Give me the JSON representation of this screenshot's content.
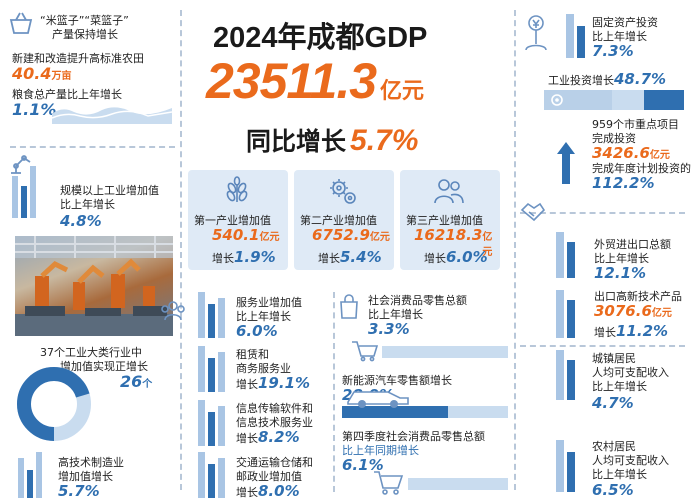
{
  "header": {
    "title": "2024年成都GDP",
    "gdp_value": "23511.3",
    "gdp_unit": "亿元",
    "growth_label": "同比增长",
    "growth_value": "5.7%"
  },
  "left": {
    "basket_title_1": "“米篮子”“菜篮子”",
    "basket_title_2": "产量保持增长",
    "farmland_label": "新建和改造提升高标准农田",
    "farmland_value": "40.4",
    "farmland_unit": "万亩",
    "grain_label": "粮食总产量比上年增长",
    "grain_value": "1.1%",
    "industry_label_1": "规模以上工业增加值",
    "industry_label_2": "比上年增长",
    "industry_value": "4.8%",
    "sectors_label_1": "37个工业大类行业中",
    "sectors_label_2": "增加值实现正增长",
    "sectors_value": "26",
    "sectors_unit": "个",
    "hightech_label_1": "高技术制造业",
    "hightech_label_2": "增加值增长",
    "hightech_value": "5.7%"
  },
  "industries": [
    {
      "name": "第一产业增加值",
      "value": "540.1",
      "unit": "亿元",
      "growth_label": "增长",
      "growth": "1.9%"
    },
    {
      "name": "第二产业增加值",
      "value": "6752.9",
      "unit": "亿元",
      "growth_label": "增长",
      "growth": "5.4%"
    },
    {
      "name": "第三产业增加值",
      "value": "16218.3",
      "unit": "亿元",
      "growth_label": "增长",
      "growth": "6.0%"
    }
  ],
  "services": [
    {
      "line1": "服务业增加值",
      "line2": "比上年增长",
      "value": "6.0%"
    },
    {
      "line1": "租赁和",
      "line2": "商务服务业",
      "line3": "增长",
      "value": "19.1%"
    },
    {
      "line1": "信息传输软件和",
      "line2": "信息技术服务业",
      "line3": "增长",
      "value": "8.2%"
    },
    {
      "line1": "交通运输仓储和",
      "line2": "邮政业增加值",
      "line3": "增长",
      "value": "8.0%"
    }
  ],
  "consumption": {
    "retail_label_1": "社会消费品零售总额",
    "retail_label_2": "比上年增长",
    "retail_value": "3.3%",
    "nev_label": "新能源汽车零售额增长",
    "nev_value": "28.9%",
    "q4_label": "第四季度社会消费品零售总额",
    "q4_label_2": "比上年同期增长",
    "q4_value": "6.1%"
  },
  "right": {
    "fixed_label_1": "固定资产投资",
    "fixed_label_2": "比上年增长",
    "fixed_value": "7.3%",
    "industrial_inv_label": "工业投资增长",
    "industrial_inv_value": "48.7%",
    "projects_label_1": "959个市重点项目",
    "projects_label_2": "完成投资",
    "projects_value": "3426.6",
    "projects_unit": "亿元",
    "projects_plan_label": "完成年度计划投资的",
    "projects_plan_value": "112.2%",
    "trade_label_1": "外贸进出口总额",
    "trade_label_2": "比上年增长",
    "trade_value": "12.1%",
    "hitech_export_label": "出口高新技术产品",
    "hitech_export_value": "3076.6",
    "hitech_export_unit": "亿元",
    "hitech_export_growth_label": "增长",
    "hitech_export_growth": "11.2%",
    "urban_label_1": "城镇居民",
    "urban_label_2": "人均可支配收入",
    "urban_label_3": "比上年增长",
    "urban_value": "4.7%",
    "rural_label_1": "农村居民",
    "rural_label_2": "人均可支配收入",
    "rural_label_3": "比上年增长",
    "rural_value": "6.5%"
  },
  "progress": {
    "nev": 0.289,
    "q4": 0.061,
    "retail": 0.033,
    "industrial_inv": 0.487,
    "sectors_ring": 0.703
  },
  "colors": {
    "blue": "#2f6fb0",
    "orange": "#ea6a1c",
    "light": "#dfeaf6"
  }
}
